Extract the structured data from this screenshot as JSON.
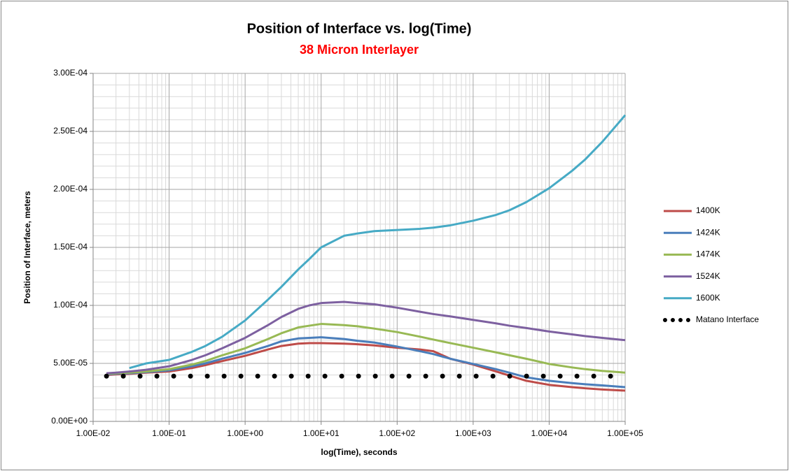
{
  "chart_data": {
    "type": "line",
    "title": "Position of Interface vs. log(Time)",
    "subtitle": "38 Micron Interlayer",
    "x_label": "log(Time), seconds",
    "y_label": "Position of Interface, meters",
    "x_log": true,
    "grid": true,
    "minor_grid": true,
    "legend": "right",
    "xlim": [
      0.01,
      100000
    ],
    "ylim": [
      0,
      0.0003
    ],
    "xticks": [
      {
        "value": 0.01,
        "label": "1.00E-02"
      },
      {
        "value": 0.1,
        "label": "1.00E-01"
      },
      {
        "value": 1,
        "label": "1.00E+00"
      },
      {
        "value": 10,
        "label": "1.00E+01"
      },
      {
        "value": 100,
        "label": "1.00E+02"
      },
      {
        "value": 1000,
        "label": "1.00E+03"
      },
      {
        "value": 10000,
        "label": "1.00E+04"
      },
      {
        "value": 100000,
        "label": "1.00E+05"
      }
    ],
    "yticks": [
      {
        "value": 0,
        "label": "0.00E+00"
      },
      {
        "value": 5e-05,
        "label": "5.00E-05"
      },
      {
        "value": 0.0001,
        "label": "1.00E-04"
      },
      {
        "value": 0.00015,
        "label": "1.50E-04"
      },
      {
        "value": 0.0002,
        "label": "2.00E-04"
      },
      {
        "value": 0.00025,
        "label": "2.50E-04"
      },
      {
        "value": 0.0003,
        "label": "3.00E-04"
      }
    ],
    "x": [
      0.015,
      0.02,
      0.03,
      0.05,
      0.1,
      0.2,
      0.3,
      0.5,
      1,
      2,
      3,
      5,
      7,
      10,
      20,
      30,
      50,
      100,
      200,
      300,
      500,
      1000,
      2000,
      3000,
      5000,
      10000,
      20000,
      30000,
      50000,
      100000
    ],
    "series": [
      {
        "name": "1400K",
        "color": "#be4b48",
        "values": [
          4e-05,
          4.05e-05,
          4.1e-05,
          4.2e-05,
          4.3e-05,
          4.6e-05,
          4.85e-05,
          5.2e-05,
          5.65e-05,
          6.2e-05,
          6.5e-05,
          6.7e-05,
          6.75e-05,
          6.75e-05,
          6.7e-05,
          6.65e-05,
          6.55e-05,
          6.35e-05,
          6.2e-05,
          6.05e-05,
          5.4e-05,
          4.9e-05,
          4.3e-05,
          3.95e-05,
          3.5e-05,
          3.15e-05,
          2.95e-05,
          2.85e-05,
          2.75e-05,
          2.65e-05
        ]
      },
      {
        "name": "1424K",
        "color": "#4a7ebb",
        "values": [
          4.05e-05,
          4.1e-05,
          4.15e-05,
          4.25e-05,
          4.4e-05,
          4.75e-05,
          5e-05,
          5.4e-05,
          5.9e-05,
          6.5e-05,
          6.9e-05,
          7.15e-05,
          7.2e-05,
          7.25e-05,
          7.1e-05,
          6.95e-05,
          6.8e-05,
          6.45e-05,
          6.05e-05,
          5.8e-05,
          5.4e-05,
          4.95e-05,
          4.5e-05,
          4.2e-05,
          3.8e-05,
          3.5e-05,
          3.3e-05,
          3.2e-05,
          3.1e-05,
          2.95e-05
        ]
      },
      {
        "name": "1474K",
        "color": "#98b954",
        "values": [
          4.1e-05,
          4.15e-05,
          4.2e-05,
          4.3e-05,
          4.5e-05,
          4.9e-05,
          5.2e-05,
          5.7e-05,
          6.3e-05,
          7.1e-05,
          7.6e-05,
          8.1e-05,
          8.25e-05,
          8.4e-05,
          8.3e-05,
          8.2e-05,
          8e-05,
          7.7e-05,
          7.3e-05,
          7.05e-05,
          6.75e-05,
          6.35e-05,
          5.95e-05,
          5.7e-05,
          5.4e-05,
          4.95e-05,
          4.65e-05,
          4.5e-05,
          4.35e-05,
          4.2e-05
        ]
      },
      {
        "name": "1524K",
        "color": "#7d60a0",
        "values": [
          4.15e-05,
          4.2e-05,
          4.3e-05,
          4.45e-05,
          4.75e-05,
          5.3e-05,
          5.7e-05,
          6.3e-05,
          7.2e-05,
          8.3e-05,
          9e-05,
          9.7e-05,
          0.0001,
          0.000102,
          0.000103,
          0.000102,
          0.000101,
          9.8e-05,
          9.45e-05,
          9.25e-05,
          9.05e-05,
          8.75e-05,
          8.45e-05,
          8.25e-05,
          8.05e-05,
          7.75e-05,
          7.5e-05,
          7.35e-05,
          7.2e-05,
          7e-05
        ]
      },
      {
        "name": "1600K",
        "color": "#46aac5",
        "values": [
          null,
          null,
          4.6e-05,
          5e-05,
          5.3e-05,
          6e-05,
          6.5e-05,
          7.3e-05,
          8.7e-05,
          0.000105,
          0.000116,
          0.000131,
          0.00014,
          0.00015,
          0.00016,
          0.000162,
          0.000164,
          0.000165,
          0.000166,
          0.000167,
          0.000169,
          0.000173,
          0.000178,
          0.000182,
          0.000189,
          0.000201,
          0.000216,
          0.000226,
          0.000241,
          0.000264
        ]
      },
      {
        "name": "Matano Interface",
        "color": "#000000",
        "style": "dots",
        "values": [
          3.9e-05,
          3.9e-05,
          3.9e-05,
          3.9e-05,
          3.9e-05,
          3.9e-05,
          3.9e-05,
          3.9e-05,
          3.9e-05,
          3.9e-05,
          3.9e-05,
          3.9e-05,
          3.9e-05,
          3.9e-05,
          3.9e-05,
          3.9e-05,
          3.9e-05,
          3.9e-05,
          3.9e-05,
          3.9e-05,
          3.9e-05,
          3.9e-05,
          3.9e-05,
          3.9e-05,
          3.9e-05,
          3.9e-05,
          3.9e-05,
          3.9e-05,
          3.9e-05,
          3.9e-05
        ]
      }
    ]
  }
}
